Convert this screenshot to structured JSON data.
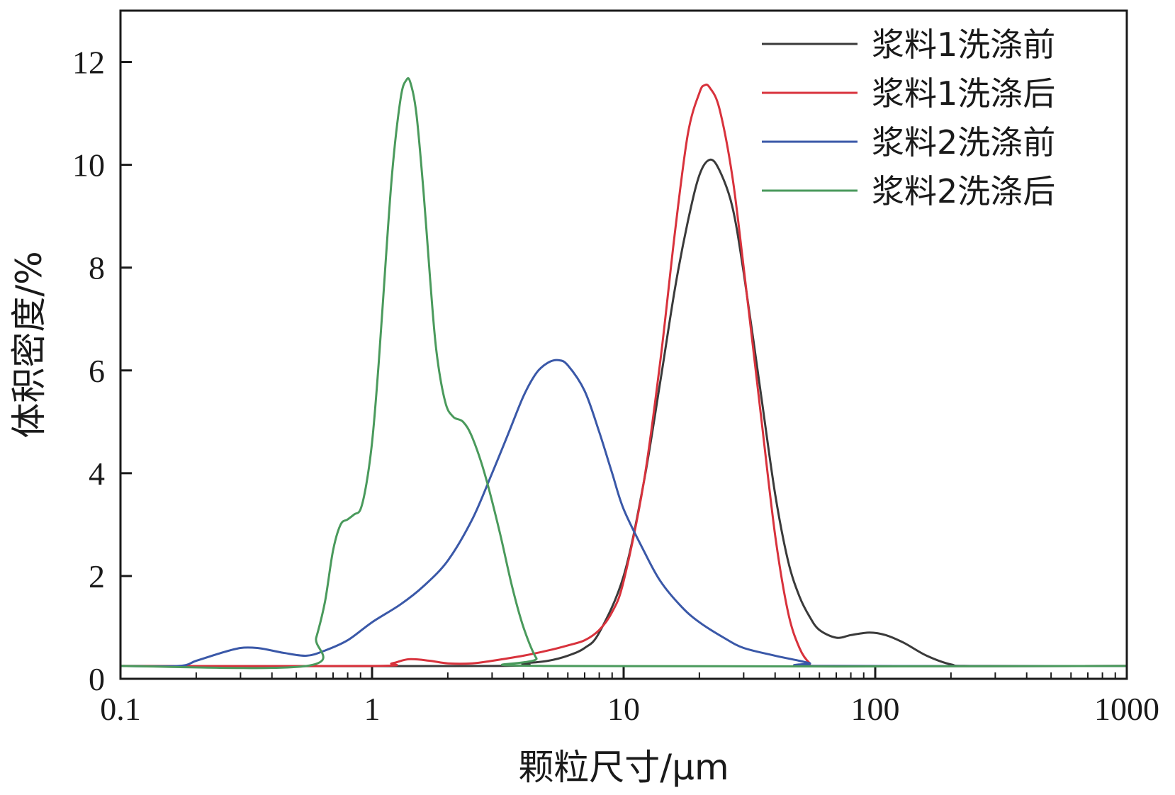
{
  "chart_data": {
    "type": "line",
    "xlabel": "颗粒尺寸/μm",
    "ylabel": "体积密度/%",
    "xscale": "log",
    "xlim": [
      0.1,
      1000
    ],
    "ylim": [
      0,
      13
    ],
    "x_ticks": [
      0.1,
      1,
      10,
      100,
      1000
    ],
    "x_tick_labels": [
      "0.1",
      "1",
      "10",
      "100",
      "1000"
    ],
    "y_ticks": [
      0,
      2,
      4,
      6,
      8,
      10,
      12
    ],
    "y_tick_labels": [
      "0",
      "2",
      "4",
      "6",
      "8",
      "10",
      "12"
    ],
    "grid": false,
    "legend": "top-right",
    "series": [
      {
        "name": "浆料1洗涤前",
        "color": "#3a3a3a",
        "points": [
          [
            0.1,
            0.25
          ],
          [
            3,
            0.25
          ],
          [
            4,
            0.3
          ],
          [
            5,
            0.35
          ],
          [
            6,
            0.45
          ],
          [
            7,
            0.6
          ],
          [
            8,
            0.9
          ],
          [
            10,
            2
          ],
          [
            12,
            3.8
          ],
          [
            14,
            5.8
          ],
          [
            16,
            7.6
          ],
          [
            18,
            8.9
          ],
          [
            20,
            9.8
          ],
          [
            22,
            10.1
          ],
          [
            24,
            9.9
          ],
          [
            27,
            9.2
          ],
          [
            30,
            7.9
          ],
          [
            35,
            5.6
          ],
          [
            40,
            3.6
          ],
          [
            45,
            2.3
          ],
          [
            50,
            1.6
          ],
          [
            55,
            1.2
          ],
          [
            60,
            0.95
          ],
          [
            70,
            0.8
          ],
          [
            80,
            0.85
          ],
          [
            95,
            0.9
          ],
          [
            110,
            0.85
          ],
          [
            130,
            0.7
          ],
          [
            160,
            0.45
          ],
          [
            200,
            0.28
          ],
          [
            250,
            0.25
          ],
          [
            1000,
            0.25
          ]
        ]
      },
      {
        "name": "浆料1洗涤后",
        "color": "#d8323c",
        "points": [
          [
            0.1,
            0.25
          ],
          [
            1,
            0.25
          ],
          [
            1.2,
            0.3
          ],
          [
            1.4,
            0.38
          ],
          [
            1.7,
            0.35
          ],
          [
            2,
            0.3
          ],
          [
            2.5,
            0.3
          ],
          [
            3,
            0.35
          ],
          [
            4,
            0.45
          ],
          [
            5,
            0.55
          ],
          [
            6,
            0.65
          ],
          [
            7,
            0.75
          ],
          [
            8,
            0.95
          ],
          [
            9,
            1.3
          ],
          [
            10,
            1.9
          ],
          [
            12,
            3.8
          ],
          [
            14,
            6.2
          ],
          [
            16,
            8.7
          ],
          [
            18,
            10.6
          ],
          [
            20,
            11.4
          ],
          [
            21,
            11.55
          ],
          [
            22,
            11.5
          ],
          [
            24,
            11.1
          ],
          [
            27,
            9.8
          ],
          [
            30,
            8
          ],
          [
            35,
            5.2
          ],
          [
            40,
            2.8
          ],
          [
            45,
            1.3
          ],
          [
            50,
            0.6
          ],
          [
            55,
            0.3
          ],
          [
            60,
            0.25
          ],
          [
            1000,
            0.25
          ]
        ]
      },
      {
        "name": "浆料2洗涤前",
        "color": "#3a58a8",
        "points": [
          [
            0.1,
            0.25
          ],
          [
            0.17,
            0.25
          ],
          [
            0.2,
            0.35
          ],
          [
            0.25,
            0.5
          ],
          [
            0.3,
            0.6
          ],
          [
            0.35,
            0.6
          ],
          [
            0.4,
            0.55
          ],
          [
            0.45,
            0.5
          ],
          [
            0.55,
            0.45
          ],
          [
            0.65,
            0.55
          ],
          [
            0.8,
            0.75
          ],
          [
            1,
            1.1
          ],
          [
            1.3,
            1.45
          ],
          [
            1.6,
            1.8
          ],
          [
            2,
            2.3
          ],
          [
            2.5,
            3.1
          ],
          [
            3,
            4
          ],
          [
            3.5,
            4.8
          ],
          [
            4,
            5.5
          ],
          [
            4.5,
            5.95
          ],
          [
            5,
            6.15
          ],
          [
            5.5,
            6.2
          ],
          [
            6,
            6.1
          ],
          [
            7,
            5.6
          ],
          [
            8,
            4.8
          ],
          [
            9,
            4
          ],
          [
            10,
            3.3
          ],
          [
            12,
            2.5
          ],
          [
            14,
            1.9
          ],
          [
            17,
            1.4
          ],
          [
            20,
            1.1
          ],
          [
            25,
            0.8
          ],
          [
            30,
            0.6
          ],
          [
            40,
            0.45
          ],
          [
            50,
            0.35
          ],
          [
            55,
            0.3
          ],
          [
            60,
            0.25
          ],
          [
            1000,
            0.25
          ]
        ]
      },
      {
        "name": "浆料2洗涤后",
        "color": "#4a9a5c",
        "points": [
          [
            0.1,
            0.25
          ],
          [
            0.55,
            0.25
          ],
          [
            0.6,
            0.8
          ],
          [
            0.65,
            1.5
          ],
          [
            0.7,
            2.5
          ],
          [
            0.75,
            3
          ],
          [
            0.8,
            3.1
          ],
          [
            0.85,
            3.2
          ],
          [
            0.9,
            3.3
          ],
          [
            0.95,
            3.8
          ],
          [
            1,
            4.6
          ],
          [
            1.05,
            5.8
          ],
          [
            1.1,
            7.2
          ],
          [
            1.2,
            9.8
          ],
          [
            1.3,
            11.3
          ],
          [
            1.37,
            11.65
          ],
          [
            1.42,
            11.6
          ],
          [
            1.5,
            11
          ],
          [
            1.6,
            9.5
          ],
          [
            1.7,
            7.8
          ],
          [
            1.8,
            6.4
          ],
          [
            1.95,
            5.4
          ],
          [
            2.1,
            5.1
          ],
          [
            2.3,
            5
          ],
          [
            2.5,
            4.7
          ],
          [
            2.8,
            4
          ],
          [
            3.2,
            2.9
          ],
          [
            3.6,
            1.8
          ],
          [
            4,
            1
          ],
          [
            4.5,
            0.4
          ],
          [
            5,
            0.25
          ],
          [
            1000,
            0.25
          ]
        ]
      }
    ]
  }
}
